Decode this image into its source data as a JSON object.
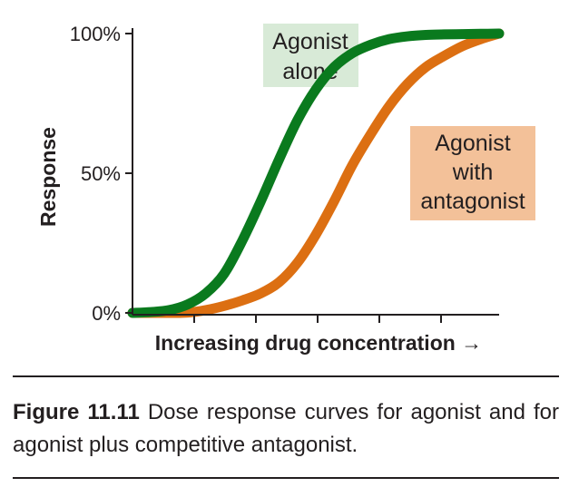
{
  "chart_data": {
    "type": "line",
    "xlabel": "Increasing drug concentration →",
    "ylabel": "Response",
    "yticks": [
      "0%",
      "50%",
      "100%"
    ],
    "y_range": [
      0,
      100
    ],
    "x_tick_count": 5,
    "grid": false,
    "series": [
      {
        "name": "Agonist alone",
        "label_lines": [
          "Agonist",
          "alone"
        ],
        "color": "#0a7a1e",
        "label_bg": "#d8ead7",
        "x": [
          0,
          5,
          10,
          15,
          20,
          25,
          30,
          35,
          40,
          45,
          50,
          55,
          60,
          65,
          70,
          75,
          80,
          85,
          90,
          95,
          100
        ],
        "y": [
          0,
          0.3,
          1,
          3,
          7,
          14,
          26,
          40,
          55,
          69,
          80,
          88,
          93,
          96,
          98,
          99,
          99.5,
          99.7,
          99.8,
          99.9,
          100
        ]
      },
      {
        "name": "Agonist with antagonist",
        "label_lines": [
          "Agonist",
          "with",
          "antagonist"
        ],
        "color": "#dc6f12",
        "label_bg": "#f3c199",
        "x": [
          0,
          5,
          10,
          15,
          20,
          25,
          30,
          35,
          40,
          45,
          50,
          55,
          60,
          65,
          70,
          75,
          80,
          85,
          90,
          95,
          100
        ],
        "y": [
          0,
          0,
          0,
          0.1,
          1,
          2.5,
          4.5,
          7,
          11,
          18,
          28,
          40,
          53,
          64,
          74,
          82,
          88,
          92,
          95.5,
          98,
          100
        ]
      }
    ]
  },
  "caption": {
    "label": "Figure 11.11",
    "text": " Dose response curves for agonist and for agonist plus competitive antagonist."
  }
}
